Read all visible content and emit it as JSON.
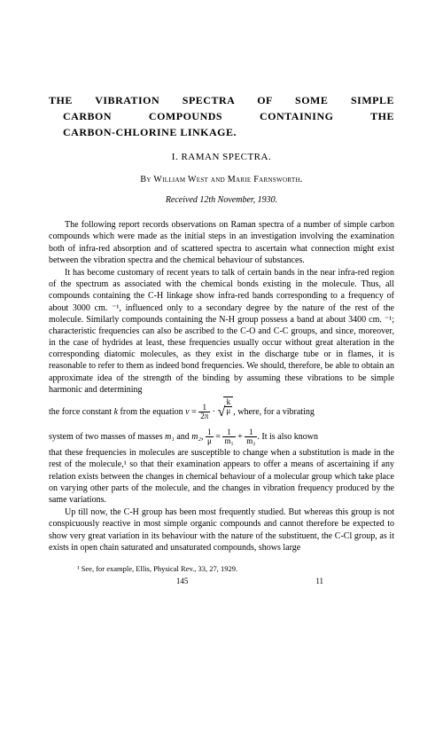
{
  "title": {
    "line1": "THE VIBRATION SPECTRA OF SOME SIMPLE",
    "line2": "CARBON COMPOUNDS CONTAINING THE",
    "line3": "CARBON-CHLORINE LINKAGE."
  },
  "subtitle": "I. RAMAN SPECTRA.",
  "authors_prefix": "By ",
  "authors": "William West and Marie Farnsworth.",
  "received": "Received 12th November, 1930.",
  "para1": "The following report records observations on Raman spectra of a number of simple carbon compounds which were made as the initial steps in an investigation involving the examination both of infra-red absorption and of scattered spectra to ascertain what connection might exist between the vibration spectra and the chemical behaviour of substances.",
  "para2": "It has become customary of recent years to talk of certain bands in the near infra-red region of the spectrum as associated with the chemical bonds existing in the molecule. Thus, all compounds containing the C-H linkage show infra-red bands corresponding to a frequency of about 3000 cm. ⁻¹, influenced only to a secondary degree by the nature of the rest of the molecule. Similarly compounds containing the N-H group possess a band at about 3400 cm. ⁻¹; characteristic frequencies can also be ascribed to the C-O and C-C groups, and since, moreover, in the case of hydrides at least, these frequencies usually occur without great alteration in the corresponding diatomic molecules, as they exist in the discharge tube or in flames, it is reasonable to refer to them as indeed bond frequencies. We should, therefore, be able to obtain an approximate idea of the strength of the binding by assuming these vibrations to be simple harmonic and determining",
  "eq_intro": "the force constant ",
  "eq_k": "k",
  "eq_from": " from the equation ",
  "eq_nu": "ν",
  "eq_equals": " = ",
  "eq_frac1_top": "1",
  "eq_frac1_bot": "2π",
  "eq_dot": " · ",
  "eq_sqrt_top": "k",
  "eq_sqrt_bot": "μ",
  "eq_comma": ",",
  "eq_where": " where, for a vibrating",
  "eq2_intro": "system of two masses of masses ",
  "eq2_m1": "m₁",
  "eq2_and": " and ",
  "eq2_m2": "m₂",
  "eq2_comma": ", ",
  "eq2_frac_top": "1",
  "eq2_frac_bot": "μ",
  "eq2_eq": " = ",
  "eq2_f2_top": "1",
  "eq2_f2_bot": "m₁",
  "eq2_plus": " + ",
  "eq2_f3_top": "1",
  "eq2_f3_bot": "m₂",
  "eq2_period": ".",
  "eq2_tail": "  It is also known",
  "para3": "that these frequencies in molecules are susceptible to change when a substitution is made in the rest of the molecule,¹ so that their examination appears to offer a means of ascertaining if any relation exists between the changes in chemical behaviour of a molecular group which take place on varying other parts of the molecule, and the changes in vibration frequency produced by the same variations.",
  "para4": "Up till now, the C-H group has been most frequently studied. But whereas this group is not conspicuously reactive in most simple organic compounds and cannot therefore be expected to show very great variation in its behaviour with the nature of the substituent, the C-Cl group, as it exists in open chain saturated and unsaturated compounds, shows large",
  "footnote": "¹ See, for example, Ellis, Physical Rev., 33, 27, 1929.",
  "page_number": "145",
  "sig_number": "11"
}
